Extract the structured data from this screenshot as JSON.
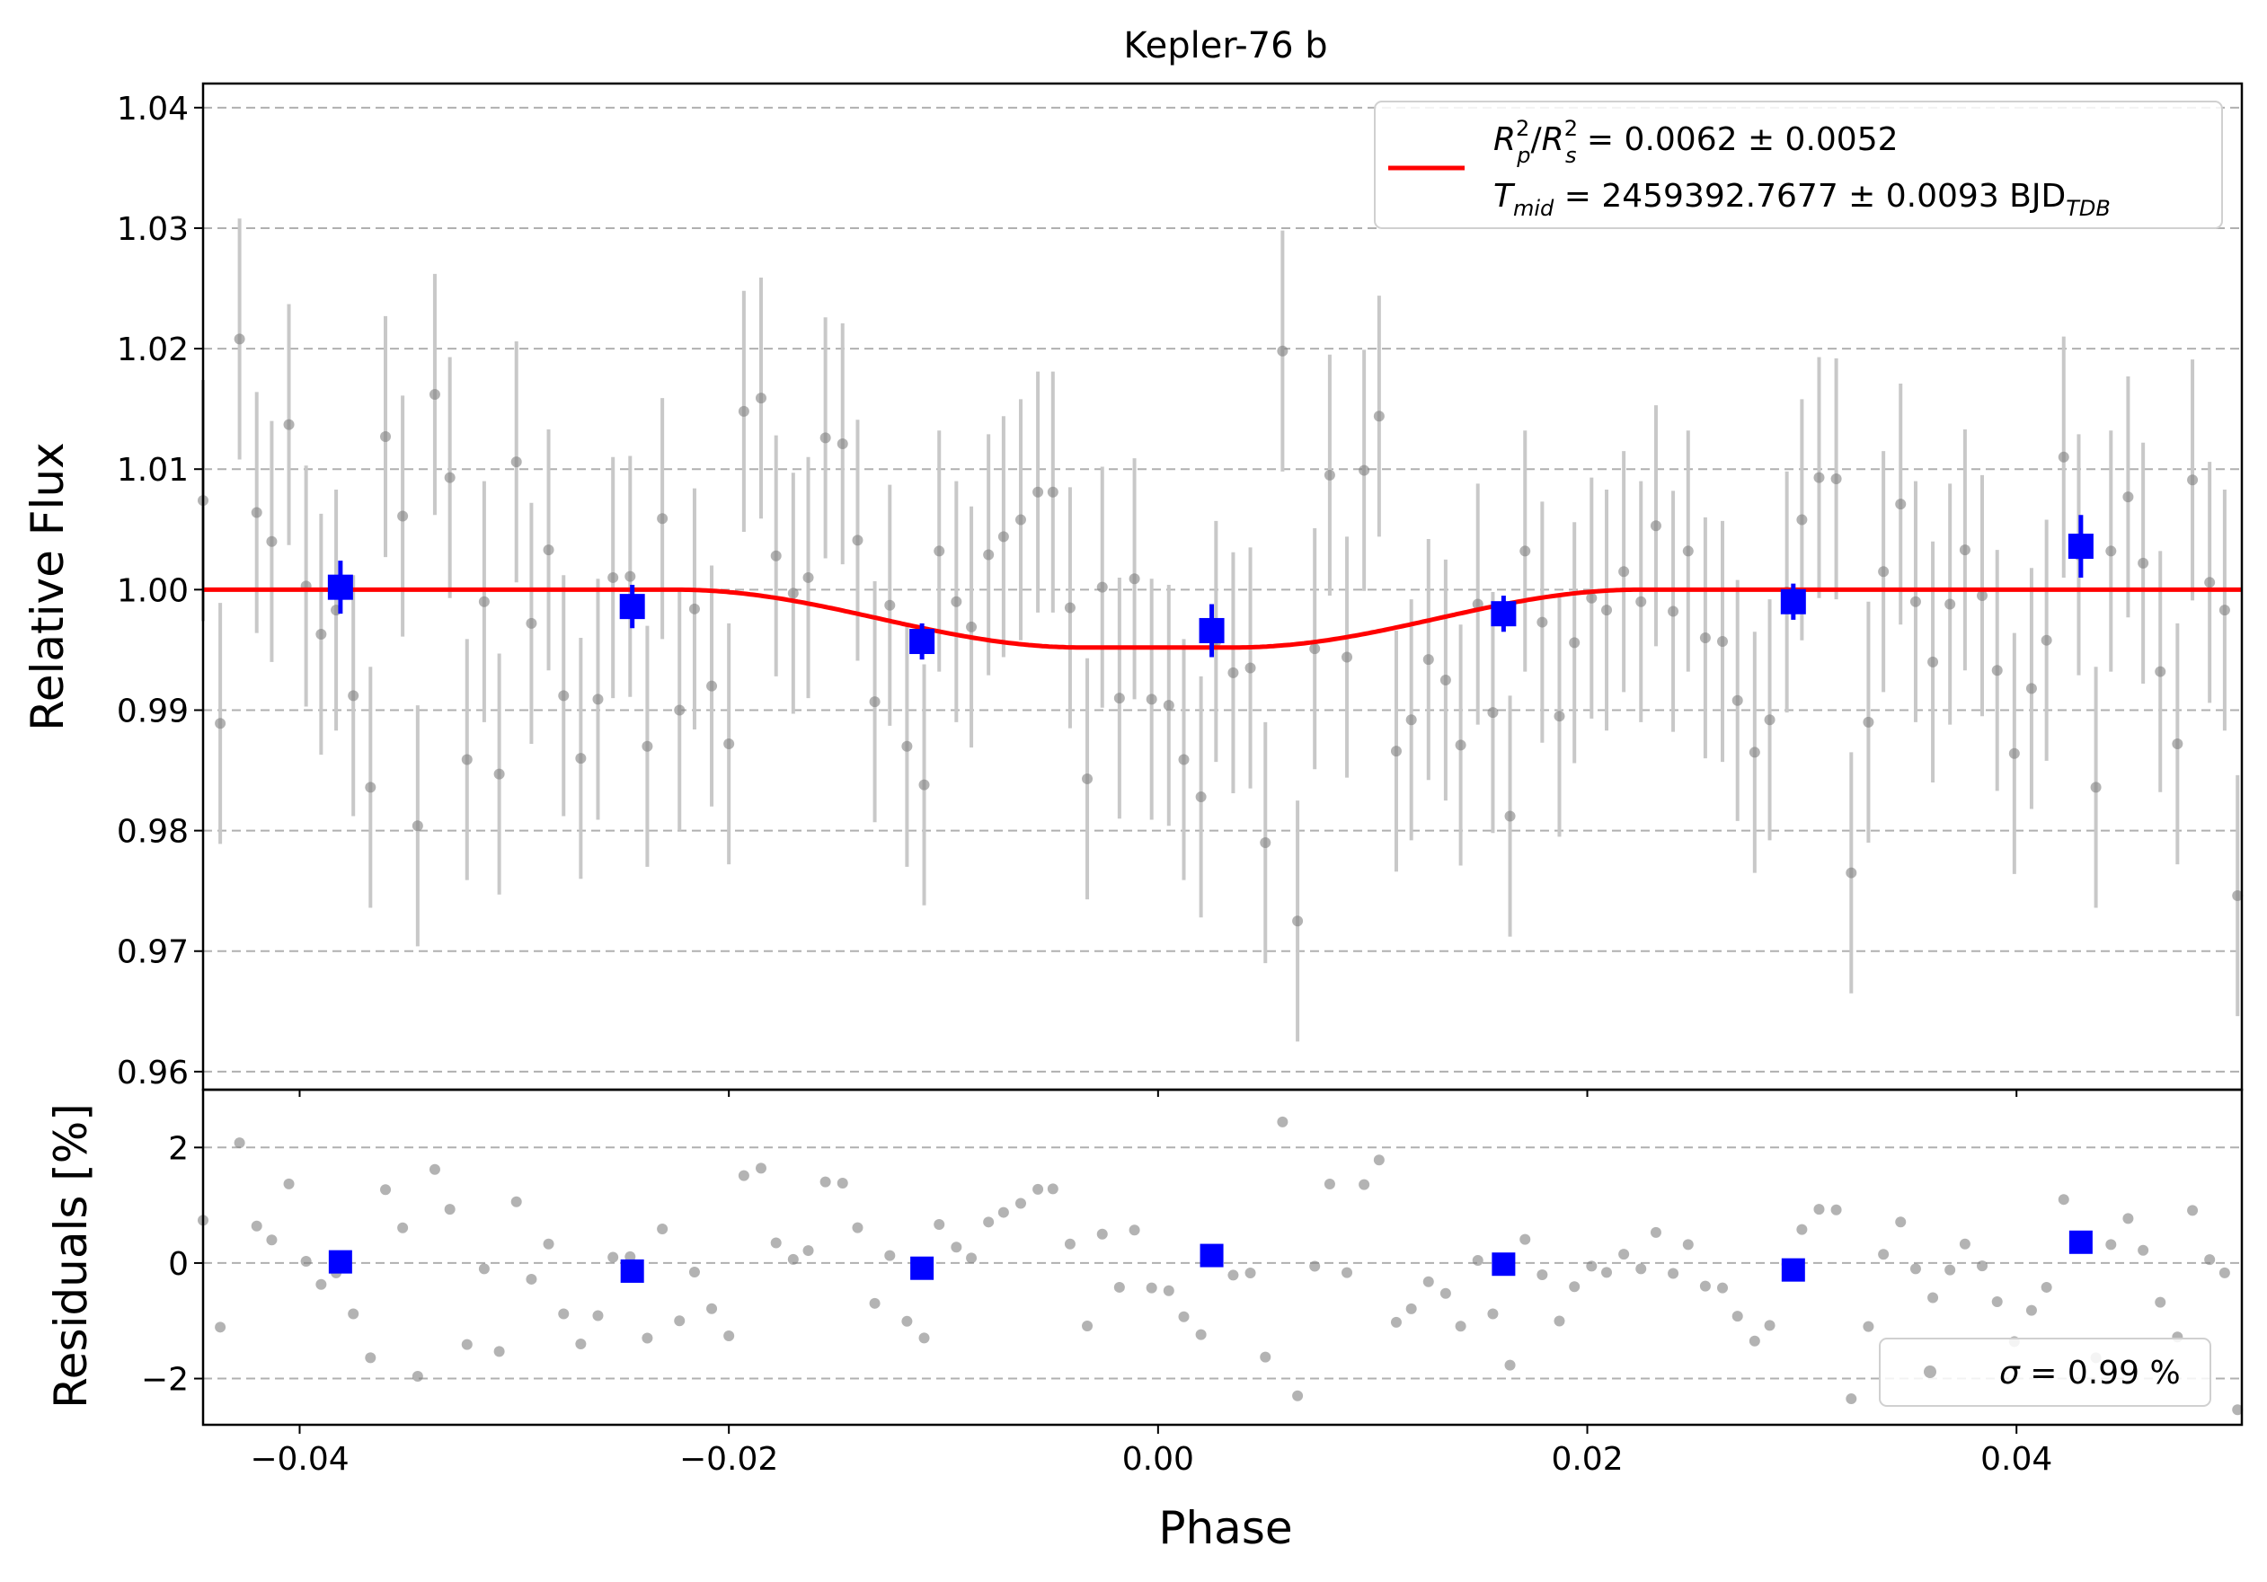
{
  "chart_data": [
    {
      "type": "scatter",
      "panel": "main",
      "title": "Kepler-76 b",
      "xlabel": "",
      "ylabel": "Relative Flux",
      "xlim": [
        -0.0445,
        0.0505
      ],
      "ylim": [
        0.9585,
        1.042
      ],
      "grid": "horizontal dashed",
      "legend_position": "top-right",
      "xticks": [
        {
          "v": -0.04,
          "label": "−0.04"
        },
        {
          "v": -0.02,
          "label": "−0.02"
        },
        {
          "v": 0.0,
          "label": "0.00"
        },
        {
          "v": 0.02,
          "label": "0.02"
        },
        {
          "v": 0.04,
          "label": "0.04"
        }
      ],
      "yticks": [
        {
          "v": 0.96,
          "label": "0.96"
        },
        {
          "v": 0.97,
          "label": "0.97"
        },
        {
          "v": 0.98,
          "label": "0.98"
        },
        {
          "v": 0.99,
          "label": "0.99"
        },
        {
          "v": 1.0,
          "label": "1.00"
        },
        {
          "v": 1.01,
          "label": "1.01"
        },
        {
          "v": 1.02,
          "label": "1.02"
        },
        {
          "v": 1.03,
          "label": "1.03"
        },
        {
          "v": 1.04,
          "label": "1.04"
        }
      ],
      "legend": {
        "line1": {
          "sym": "R",
          "sup1": "2",
          "sub1": "p",
          "sep": "/",
          "sym2": "R",
          "sup2": "2",
          "sub2": "s",
          "text": " = 0.0062 ± 0.0052"
        },
        "line2": {
          "sym": "T",
          "sub": "mid",
          "text": " = 2459392.7677 ± 0.0093 BJD",
          "unit_sub": "TDB"
        }
      },
      "colors": {
        "data": "#808080",
        "errorbar": "#c8c8c8",
        "binned": "#0000ff",
        "model": "#ff0000",
        "grid": "#b0b0b0"
      },
      "model": {
        "baseline": 1.0,
        "depth_flux": 0.9952,
        "ingress_start": -0.0225,
        "ingress_end": -0.0035,
        "egress_start": 0.0035,
        "egress_end": 0.0225
      },
      "data": [
        [
          -0.0445,
          1.0074,
          0.01
        ],
        [
          -0.0437,
          0.9889,
          0.01
        ],
        [
          -0.0428,
          1.0208,
          0.01
        ],
        [
          -0.042,
          1.0064,
          0.01
        ],
        [
          -0.0413,
          1.004,
          0.01
        ],
        [
          -0.0405,
          1.0137,
          0.01
        ],
        [
          -0.0397,
          1.0003,
          0.01
        ],
        [
          -0.039,
          0.9963,
          0.01
        ],
        [
          -0.0383,
          0.9983,
          0.01
        ],
        [
          -0.0375,
          0.9912,
          0.01
        ],
        [
          -0.0367,
          0.9836,
          0.01
        ],
        [
          -0.036,
          1.0127,
          0.01
        ],
        [
          -0.0352,
          1.0061,
          0.01
        ],
        [
          -0.0345,
          0.9804,
          0.01
        ],
        [
          -0.0337,
          1.0162,
          0.01
        ],
        [
          -0.033,
          1.0093,
          0.01
        ],
        [
          -0.0322,
          0.9859,
          0.01
        ],
        [
          -0.0314,
          0.999,
          0.01
        ],
        [
          -0.0307,
          0.9847,
          0.01
        ],
        [
          -0.0299,
          1.0106,
          0.01
        ],
        [
          -0.0292,
          0.9972,
          0.01
        ],
        [
          -0.0284,
          1.0033,
          0.01
        ],
        [
          -0.0277,
          0.9912,
          0.01
        ],
        [
          -0.0269,
          0.986,
          0.01
        ],
        [
          -0.0261,
          0.9909,
          0.01
        ],
        [
          -0.0254,
          1.001,
          0.01
        ],
        [
          -0.0246,
          1.0011,
          0.01
        ],
        [
          -0.0238,
          0.987,
          0.01
        ],
        [
          -0.0231,
          1.0059,
          0.01
        ],
        [
          -0.0223,
          0.99,
          0.01
        ],
        [
          -0.0216,
          0.9984,
          0.01
        ],
        [
          -0.0208,
          0.992,
          0.01
        ],
        [
          -0.02,
          0.9872,
          0.01
        ],
        [
          -0.0193,
          1.0148,
          0.01
        ],
        [
          -0.0185,
          1.0159,
          0.01
        ],
        [
          -0.0178,
          1.0028,
          0.01
        ],
        [
          -0.017,
          0.9997,
          0.01
        ],
        [
          -0.0163,
          1.001,
          0.01
        ],
        [
          -0.0155,
          1.0126,
          0.01
        ],
        [
          -0.0147,
          1.0121,
          0.01
        ],
        [
          -0.014,
          1.0041,
          0.01
        ],
        [
          -0.0132,
          0.9907,
          0.01
        ],
        [
          -0.0125,
          0.9987,
          0.01
        ],
        [
          -0.0117,
          0.987,
          0.01
        ],
        [
          -0.0109,
          0.9838,
          0.01
        ],
        [
          -0.0102,
          1.0032,
          0.01
        ],
        [
          -0.0094,
          0.999,
          0.01
        ],
        [
          -0.0087,
          0.9969,
          0.01
        ],
        [
          -0.0079,
          1.0029,
          0.01
        ],
        [
          -0.0072,
          1.0044,
          0.01
        ],
        [
          -0.0064,
          1.0058,
          0.01
        ],
        [
          -0.0056,
          1.0081,
          0.01
        ],
        [
          -0.0049,
          1.0081,
          0.01
        ],
        [
          -0.0041,
          0.9985,
          0.01
        ],
        [
          -0.0033,
          0.9843,
          0.01
        ],
        [
          -0.0026,
          1.0002,
          0.01
        ],
        [
          -0.0018,
          0.991,
          0.01
        ],
        [
          -0.0011,
          1.0009,
          0.01
        ],
        [
          -0.0003,
          0.9909,
          0.01
        ],
        [
          0.0005,
          0.9904,
          0.01
        ],
        [
          0.0012,
          0.9859,
          0.01
        ],
        [
          0.002,
          0.9828,
          0.01
        ],
        [
          0.0027,
          0.9957,
          0.01
        ],
        [
          0.0035,
          0.9931,
          0.01
        ],
        [
          0.0043,
          0.9935,
          0.01
        ],
        [
          0.005,
          0.979,
          0.01
        ],
        [
          0.0058,
          1.0198,
          0.01
        ],
        [
          0.0065,
          0.9725,
          0.01
        ],
        [
          0.0073,
          0.9951,
          0.01
        ],
        [
          0.008,
          1.0095,
          0.01
        ],
        [
          0.0088,
          0.9944,
          0.01
        ],
        [
          0.0096,
          1.0099,
          0.01
        ],
        [
          0.0103,
          1.0144,
          0.01
        ],
        [
          0.0111,
          0.9866,
          0.01
        ],
        [
          0.0118,
          0.9892,
          0.01
        ],
        [
          0.0126,
          0.9942,
          0.01
        ],
        [
          0.0134,
          0.9925,
          0.01
        ],
        [
          0.0141,
          0.9871,
          0.01
        ],
        [
          0.0149,
          0.9988,
          0.01
        ],
        [
          0.0156,
          0.9898,
          0.01
        ],
        [
          0.0164,
          0.9812,
          0.01
        ],
        [
          0.0171,
          1.0032,
          0.01
        ],
        [
          0.0179,
          0.9973,
          0.01
        ],
        [
          0.0187,
          0.9895,
          0.01
        ],
        [
          0.0194,
          0.9956,
          0.01
        ],
        [
          0.0202,
          0.9993,
          0.01
        ],
        [
          0.0209,
          0.9983,
          0.01
        ],
        [
          0.0217,
          1.0015,
          0.01
        ],
        [
          0.0225,
          0.999,
          0.01
        ],
        [
          0.0232,
          1.0053,
          0.01
        ],
        [
          0.024,
          0.9982,
          0.01
        ],
        [
          0.0247,
          1.0032,
          0.01
        ],
        [
          0.0255,
          0.996,
          0.01
        ],
        [
          0.0263,
          0.9957,
          0.01
        ],
        [
          0.027,
          0.9908,
          0.01
        ],
        [
          0.0278,
          0.9865,
          0.01
        ],
        [
          0.0285,
          0.9892,
          0.01
        ],
        [
          0.0293,
          0.9998,
          0.01
        ],
        [
          0.03,
          1.0058,
          0.01
        ],
        [
          0.0308,
          1.0093,
          0.01
        ],
        [
          0.0316,
          1.0092,
          0.01
        ],
        [
          0.0323,
          0.9765,
          0.01
        ],
        [
          0.0331,
          0.989,
          0.01
        ],
        [
          0.0338,
          1.0015,
          0.01
        ],
        [
          0.0346,
          1.0071,
          0.01
        ],
        [
          0.0353,
          0.999,
          0.01
        ],
        [
          0.0361,
          0.994,
          0.01
        ],
        [
          0.0369,
          0.9988,
          0.01
        ],
        [
          0.0376,
          1.0033,
          0.01
        ],
        [
          0.0384,
          0.9995,
          0.01
        ],
        [
          0.0391,
          0.9933,
          0.01
        ],
        [
          0.0399,
          0.9864,
          0.01
        ],
        [
          0.0407,
          0.9918,
          0.01
        ],
        [
          0.0414,
          0.9958,
          0.01
        ],
        [
          0.0422,
          1.011,
          0.01
        ],
        [
          0.0429,
          1.0029,
          0.01
        ],
        [
          0.0437,
          0.9836,
          0.01
        ],
        [
          0.0444,
          1.0032,
          0.01
        ],
        [
          0.0452,
          1.0077,
          0.01
        ],
        [
          0.0459,
          1.0022,
          0.01
        ],
        [
          0.0467,
          0.9932,
          0.01
        ],
        [
          0.0475,
          0.9872,
          0.01
        ],
        [
          0.0482,
          1.0091,
          0.01
        ],
        [
          0.049,
          1.0006,
          0.01
        ],
        [
          0.0497,
          0.9983,
          0.01
        ],
        [
          0.0503,
          0.9746,
          0.01
        ]
      ],
      "binned": [
        [
          -0.0381,
          1.0002,
          0.0022
        ],
        [
          -0.0245,
          0.9986,
          0.0018
        ],
        [
          -0.011,
          0.9957,
          0.0015
        ],
        [
          0.0025,
          0.9966,
          0.0022
        ],
        [
          0.0161,
          0.998,
          0.0015
        ],
        [
          0.0296,
          0.999,
          0.0015
        ],
        [
          0.043,
          1.0036,
          0.0026
        ]
      ]
    },
    {
      "type": "scatter",
      "panel": "residuals",
      "xlabel": "Phase",
      "ylabel": "Residuals [%]",
      "xlim": [
        -0.0445,
        0.0505
      ],
      "ylim": [
        -2.8,
        3.0
      ],
      "grid": "horizontal dashed",
      "legend_position": "bottom-right",
      "yticks": [
        {
          "v": -2,
          "label": "−2"
        },
        {
          "v": 0,
          "label": "0"
        },
        {
          "v": 2,
          "label": "2"
        }
      ],
      "legend": {
        "sym": "σ",
        "text": " = 0.99 %"
      },
      "binned": [
        [
          -0.0381,
          0.02
        ],
        [
          -0.0245,
          -0.14
        ],
        [
          -0.011,
          -0.09
        ],
        [
          0.0025,
          0.13
        ],
        [
          0.0161,
          -0.02
        ],
        [
          0.0296,
          -0.12
        ],
        [
          0.043,
          0.36
        ]
      ]
    }
  ]
}
